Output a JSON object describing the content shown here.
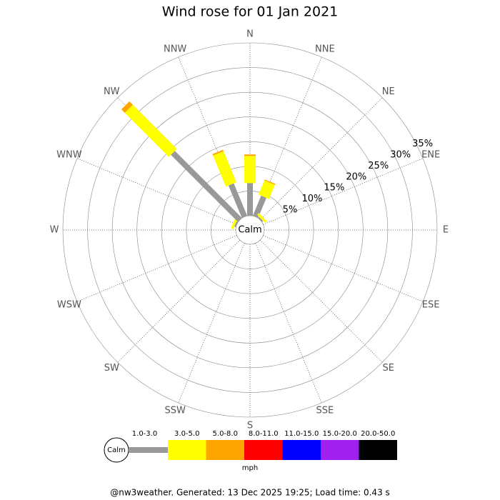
{
  "chart_data": {
    "type": "windrose",
    "title": "Wind rose for 01 Jan 2021",
    "directions": [
      "N",
      "NNE",
      "NE",
      "ENE",
      "E",
      "ESE",
      "SE",
      "SSE",
      "S",
      "SSW",
      "SW",
      "WSW",
      "W",
      "WNW",
      "NW",
      "NNW"
    ],
    "series": [
      {
        "name": "1.0-3.0",
        "color": "#999999",
        "values": [
          6.6,
          4.4,
          0.3,
          0,
          0,
          0,
          0,
          0,
          0,
          0,
          0,
          0,
          0,
          0.3,
          19.2,
          7.1
        ]
      },
      {
        "name": "3.0-5.0",
        "color": "#ffff00",
        "values": [
          5.5,
          3.1,
          0.5,
          0,
          0,
          0,
          0,
          0,
          0,
          0,
          0,
          0,
          0,
          0.5,
          12.6,
          6.8
        ]
      },
      {
        "name": "5.0-8.0",
        "color": "#ffa500",
        "values": [
          0.3,
          0.2,
          0,
          0,
          0,
          0,
          0,
          0,
          0,
          0,
          0,
          0,
          0,
          0,
          1.0,
          0.3
        ]
      },
      {
        "name": "8.0-11.0",
        "color": "#ff0000",
        "values": [
          0,
          0,
          0,
          0,
          0,
          0,
          0,
          0,
          0,
          0,
          0,
          0,
          0,
          0,
          0,
          0
        ]
      },
      {
        "name": "11.0-15.0",
        "color": "#0000ff",
        "values": [
          0,
          0,
          0,
          0,
          0,
          0,
          0,
          0,
          0,
          0,
          0,
          0,
          0,
          0,
          0,
          0
        ]
      },
      {
        "name": "15.0-20.0",
        "color": "#a020f0",
        "values": [
          0,
          0,
          0,
          0,
          0,
          0,
          0,
          0,
          0,
          0,
          0,
          0,
          0,
          0,
          0,
          0
        ]
      },
      {
        "name": "20.0-50.0",
        "color": "#000000",
        "values": [
          0,
          0,
          0,
          0,
          0,
          0,
          0,
          0,
          0,
          0,
          0,
          0,
          0,
          0,
          0,
          0
        ]
      }
    ],
    "rlim": [
      0,
      35
    ],
    "rticks": [
      {
        "value": 5,
        "label": "5%"
      },
      {
        "value": 10,
        "label": "10%"
      },
      {
        "value": 15,
        "label": "15%"
      },
      {
        "value": 20,
        "label": "20%"
      },
      {
        "value": 25,
        "label": "25%"
      },
      {
        "value": 30,
        "label": "30%"
      },
      {
        "value": 35,
        "label": "35%"
      }
    ],
    "center_label": "Calm",
    "legend_calm": "Calm",
    "unit": "mph"
  },
  "footer": "@nw3weather. Generated: 13 Dec 2025 19:25; Load time: 0.43 s"
}
